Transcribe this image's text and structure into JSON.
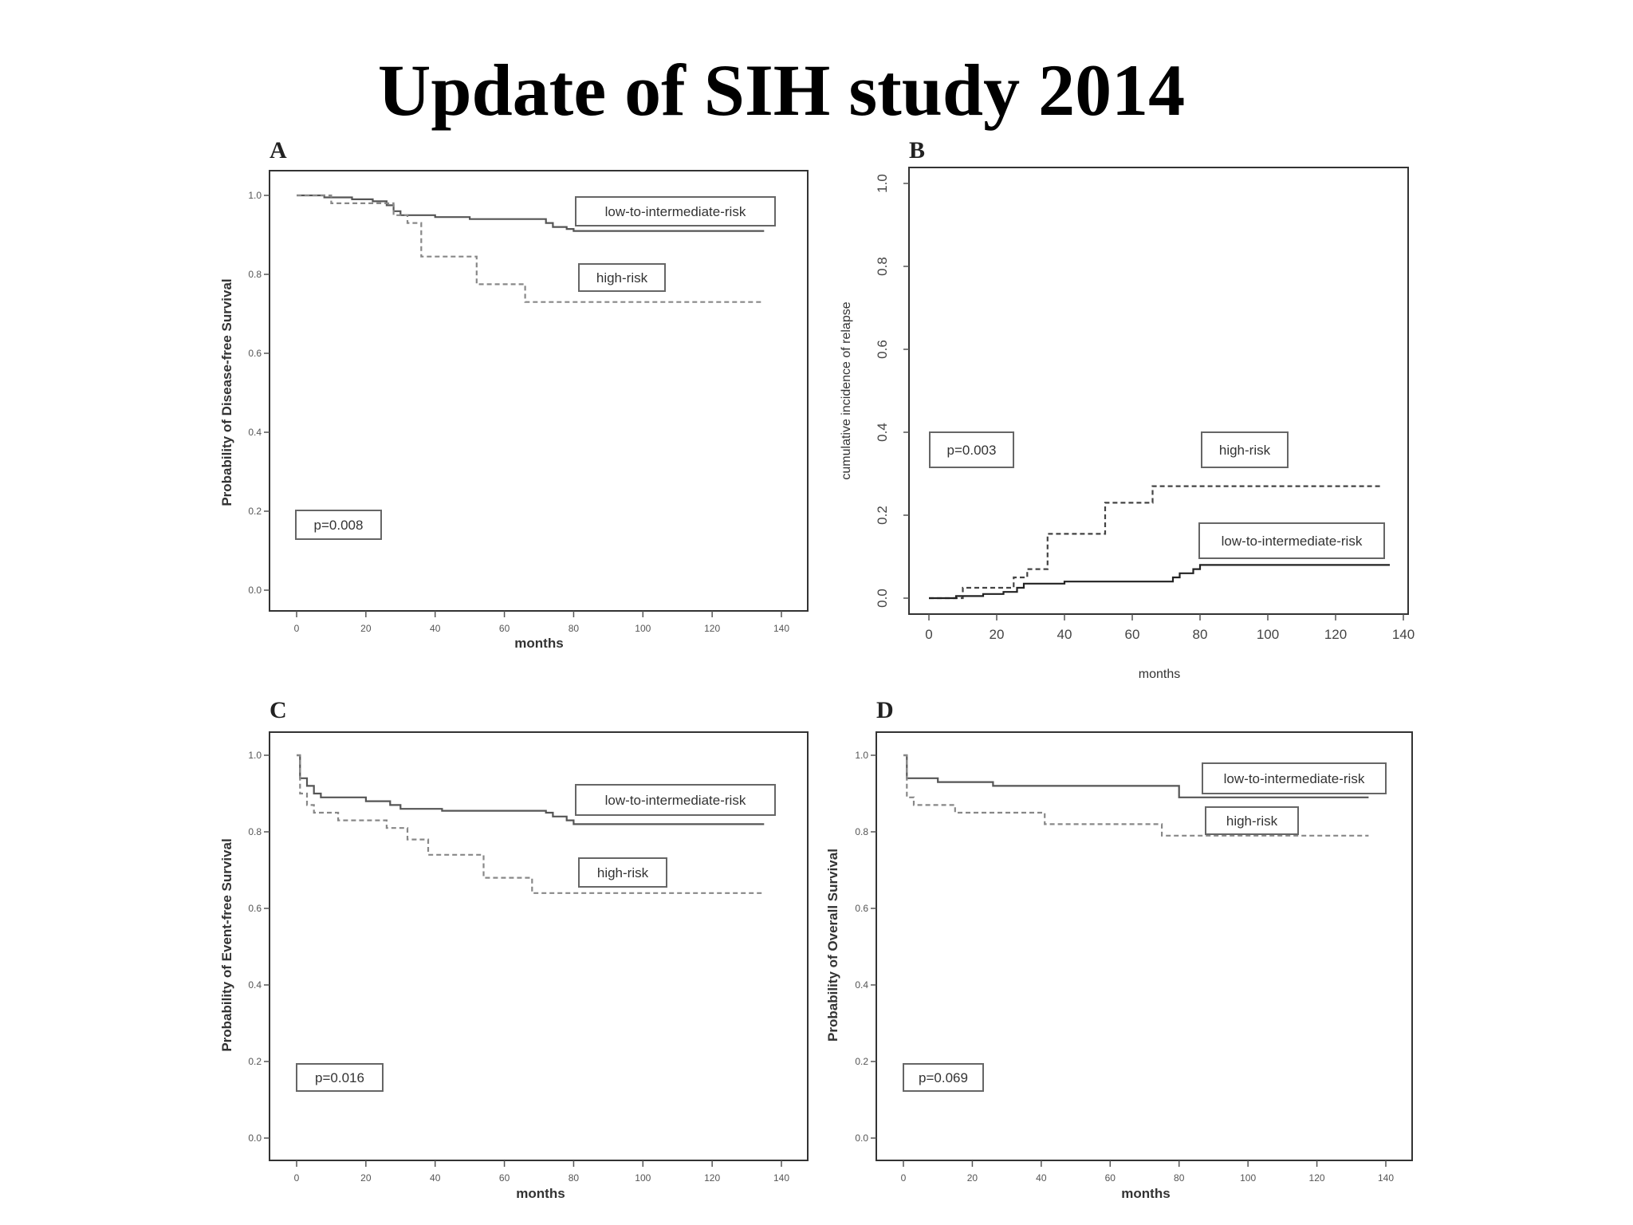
{
  "slide": {
    "title": "Update of SIH study 2014"
  },
  "chart_data": [
    {
      "panel": "A",
      "type": "line",
      "step": true,
      "xlabel": "months",
      "ylabel": "Probability of Disease-free Survival",
      "xlim": [
        0,
        140
      ],
      "ylim": [
        0,
        1.0
      ],
      "xticks": [
        0,
        20,
        40,
        60,
        80,
        100,
        120,
        140
      ],
      "yticks": [
        0.0,
        0.2,
        0.4,
        0.6,
        0.8,
        1.0
      ],
      "xtick_labels": [
        "0",
        "20",
        "40",
        "60",
        "80",
        "100",
        "120",
        "140"
      ],
      "ytick_labels": [
        "0.0",
        "0.2",
        "0.4",
        "0.6",
        "0.8",
        "1.0"
      ],
      "annotation": "p=0.008",
      "series": [
        {
          "name": "low-to-intermediate-risk",
          "style": "solid",
          "x": [
            0,
            8,
            16,
            22,
            26,
            28,
            30,
            40,
            50,
            60,
            70,
            72,
            74,
            78,
            80,
            135
          ],
          "y": [
            1.0,
            0.995,
            0.99,
            0.985,
            0.975,
            0.96,
            0.95,
            0.945,
            0.94,
            0.94,
            0.94,
            0.93,
            0.92,
            0.915,
            0.91,
            0.91
          ]
        },
        {
          "name": "high-risk",
          "style": "dashed",
          "x": [
            0,
            10,
            28,
            32,
            36,
            52,
            66,
            135
          ],
          "y": [
            1.0,
            0.98,
            0.95,
            0.93,
            0.845,
            0.775,
            0.73,
            0.73
          ]
        }
      ]
    },
    {
      "panel": "B",
      "type": "line",
      "step": true,
      "xlabel": "months",
      "ylabel": "cumulative incidence of relapse",
      "xlim": [
        0,
        140
      ],
      "ylim": [
        0,
        1.0
      ],
      "xticks": [
        0,
        20,
        40,
        60,
        80,
        100,
        120,
        140
      ],
      "yticks": [
        0.0,
        0.2,
        0.4,
        0.6,
        0.8,
        1.0
      ],
      "xtick_labels": [
        "0",
        "20",
        "40",
        "60",
        "80",
        "100",
        "120",
        "140"
      ],
      "ytick_labels": [
        "0.0",
        "0.2",
        "0.4",
        "0.6",
        "0.8",
        "1.0"
      ],
      "annotation": "p=0.003",
      "series": [
        {
          "name": "high-risk",
          "style": "dashed",
          "x": [
            0,
            10,
            25,
            29,
            35,
            52,
            66,
            134
          ],
          "y": [
            0.0,
            0.025,
            0.05,
            0.07,
            0.155,
            0.23,
            0.27,
            0.27
          ]
        },
        {
          "name": "low-to-intermediate-risk",
          "style": "solid",
          "x": [
            0,
            8,
            16,
            22,
            26,
            28,
            40,
            70,
            72,
            74,
            78,
            80,
            136
          ],
          "y": [
            0.0,
            0.005,
            0.01,
            0.015,
            0.025,
            0.035,
            0.04,
            0.04,
            0.05,
            0.06,
            0.07,
            0.08,
            0.08
          ]
        }
      ]
    },
    {
      "panel": "C",
      "type": "line",
      "step": true,
      "xlabel": "months",
      "ylabel": "Probability of Event-free Survival",
      "xlim": [
        0,
        140
      ],
      "ylim": [
        0,
        1.0
      ],
      "xticks": [
        0,
        20,
        40,
        60,
        80,
        100,
        120,
        140
      ],
      "yticks": [
        0.0,
        0.2,
        0.4,
        0.6,
        0.8,
        1.0
      ],
      "xtick_labels": [
        "0",
        "20",
        "40",
        "60",
        "80",
        "100",
        "120",
        "140"
      ],
      "ytick_labels": [
        "0.0",
        "0.2",
        "0.4",
        "0.6",
        "0.8",
        "1.0"
      ],
      "annotation": "p=0.016",
      "series": [
        {
          "name": "low-to-intermediate-risk",
          "style": "solid",
          "x": [
            0,
            1,
            3,
            5,
            7,
            20,
            27,
            30,
            42,
            72,
            74,
            78,
            80,
            135
          ],
          "y": [
            1.0,
            0.94,
            0.92,
            0.9,
            0.89,
            0.88,
            0.87,
            0.86,
            0.855,
            0.85,
            0.84,
            0.83,
            0.82,
            0.82
          ]
        },
        {
          "name": "high-risk",
          "style": "dashed",
          "x": [
            0,
            1,
            3,
            5,
            12,
            26,
            32,
            38,
            54,
            68,
            135
          ],
          "y": [
            1.0,
            0.9,
            0.87,
            0.85,
            0.83,
            0.81,
            0.78,
            0.74,
            0.68,
            0.64,
            0.64
          ]
        }
      ]
    },
    {
      "panel": "D",
      "type": "line",
      "step": true,
      "xlabel": "months",
      "ylabel": "Probability of Overall Survival",
      "xlim": [
        0,
        140
      ],
      "ylim": [
        0,
        1.0
      ],
      "xticks": [
        0,
        20,
        40,
        60,
        80,
        100,
        120,
        140
      ],
      "yticks": [
        0.0,
        0.2,
        0.4,
        0.6,
        0.8,
        1.0
      ],
      "xtick_labels": [
        "0",
        "20",
        "40",
        "60",
        "80",
        "100",
        "120",
        "140"
      ],
      "ytick_labels": [
        "0.0",
        "0.2",
        "0.4",
        "0.6",
        "0.8",
        "1.0"
      ],
      "annotation": "p=0.069",
      "series": [
        {
          "name": "low-to-intermediate-risk",
          "style": "solid",
          "x": [
            0,
            1,
            10,
            26,
            80,
            135
          ],
          "y": [
            1.0,
            0.94,
            0.93,
            0.92,
            0.89,
            0.89
          ]
        },
        {
          "name": "high-risk",
          "style": "dashed",
          "x": [
            0,
            1,
            3,
            15,
            41,
            75,
            135
          ],
          "y": [
            1.0,
            0.89,
            0.87,
            0.85,
            0.82,
            0.79,
            0.79
          ]
        }
      ]
    }
  ]
}
